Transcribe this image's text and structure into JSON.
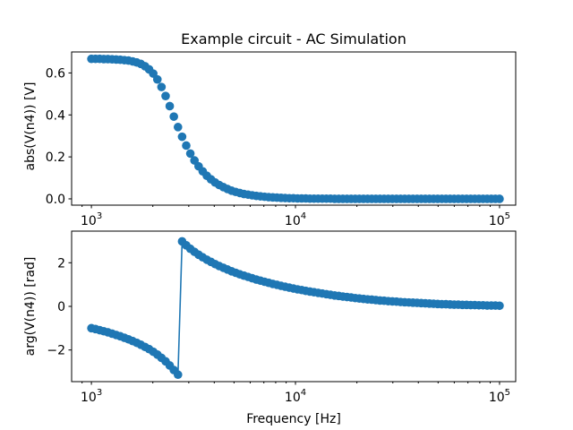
{
  "chart_data": [
    {
      "type": "scatter",
      "title": "Example circuit - AC Simulation",
      "xlabel": "",
      "ylabel": "abs(V(n4)) [V]",
      "xscale": "log",
      "xlim": [
        800,
        120000
      ],
      "ylim": [
        -0.03,
        0.7
      ],
      "xticks": [
        {
          "value": 1000,
          "base": "10",
          "exp": "3"
        },
        {
          "value": 10000,
          "base": "10",
          "exp": "4"
        },
        {
          "value": 100000,
          "base": "10",
          "exp": "5"
        }
      ],
      "yticks": [
        {
          "value": 0.0,
          "label": "0.0"
        },
        {
          "value": 0.2,
          "label": "0.2"
        },
        {
          "value": 0.4,
          "label": "0.4"
        },
        {
          "value": 0.6,
          "label": "0.6"
        }
      ],
      "color": "#1f77b4",
      "x": [
        1000,
        1047.6,
        1097.5,
        1149.8,
        1204.5,
        1261.9,
        1322,
        1385,
        1450.9,
        1520,
        1592.5,
        1668.1,
        1747.5,
        1830.7,
        1917.9,
        2009.2,
        2104.9,
        2205.1,
        2310.1,
        2420.1,
        2535.4,
        2656.1,
        2782.6,
        2915.1,
        3053.9,
        3199.3,
        3351.6,
        3511.2,
        3678.4,
        3853.5,
        4037,
        4229.2,
        4430.6,
        4641.6,
        4862.6,
        5094.1,
        5336.7,
        5590.8,
        5857,
        6135.9,
        6428.1,
        6734.2,
        7054.8,
        7390.7,
        7742.6,
        8111.3,
        8497.5,
        8902.2,
        9326,
        9770.1,
        10235.3,
        10722.7,
        11233.2,
        11768.1,
        12328.5,
        12915.5,
        13530.5,
        14174.7,
        14849.7,
        15556.8,
        16297.5,
        17073.5,
        17886.5,
        18738.2,
        19630.4,
        20565.1,
        21544.3,
        22570.2,
        23645,
        24770.8,
        25950.2,
        27185.9,
        28480.4,
        29836.5,
        31257.2,
        32745.5,
        34304.8,
        35938.1,
        37649.4,
        39442.1,
        41320,
        43287.6,
        45348.8,
        47508.1,
        49770.2,
        52140.1,
        54622.8,
        57223.7,
        59948.4,
        62802.9,
        65793.3,
        68926.1,
        72208.1,
        75646.3,
        79248.3,
        83021.8,
        86975,
        91116.3,
        95455.1,
        100000
      ],
      "y": [
        0.667,
        0.667,
        0.667,
        0.666,
        0.666,
        0.665,
        0.664,
        0.663,
        0.661,
        0.659,
        0.655,
        0.65,
        0.643,
        0.632,
        0.617,
        0.597,
        0.569,
        0.533,
        0.49,
        0.442,
        0.392,
        0.342,
        0.296,
        0.254,
        0.216,
        0.183,
        0.155,
        0.131,
        0.11,
        0.093,
        0.078,
        0.066,
        0.056,
        0.047,
        0.039,
        0.033,
        0.028,
        0.023,
        0.02,
        0.017,
        0.014,
        0.012,
        0.01,
        0.008,
        0.007,
        0.006,
        0.005,
        0.004,
        0.003,
        0.003,
        0.002,
        0.002,
        0.002,
        0.001,
        0.001,
        0.001,
        0.001,
        0.001,
        0.001,
        0,
        0,
        0,
        0,
        0,
        0,
        0,
        0,
        0,
        0,
        0,
        0,
        0,
        0,
        0,
        0,
        0,
        0,
        0,
        0,
        0,
        0,
        0,
        0,
        0,
        0,
        0,
        0,
        0,
        0,
        0,
        0,
        0,
        0,
        0,
        0,
        0,
        0,
        0,
        0,
        0
      ]
    },
    {
      "type": "line",
      "title": "",
      "xlabel": "Frequency [Hz]",
      "ylabel": "arg(V(n4)) [rad]",
      "xscale": "log",
      "xlim": [
        800,
        120000
      ],
      "ylim": [
        -3.45,
        3.45
      ],
      "xticks": [
        {
          "value": 1000,
          "base": "10",
          "exp": "3"
        },
        {
          "value": 10000,
          "base": "10",
          "exp": "4"
        },
        {
          "value": 100000,
          "base": "10",
          "exp": "5"
        }
      ],
      "yticks": [
        {
          "value": -2,
          "label": "−2"
        },
        {
          "value": 0,
          "label": "0"
        },
        {
          "value": 2,
          "label": "2"
        }
      ],
      "color": "#1f77b4",
      "markers": true,
      "x": [
        1000,
        1047.6,
        1097.5,
        1149.8,
        1204.5,
        1261.9,
        1322,
        1385,
        1450.9,
        1520,
        1592.5,
        1668.1,
        1747.5,
        1830.7,
        1917.9,
        2009.2,
        2104.9,
        2205.1,
        2310.1,
        2420.1,
        2535.4,
        2656.1,
        2782.6,
        2915.1,
        3053.9,
        3199.3,
        3351.6,
        3511.2,
        3678.4,
        3853.5,
        4037,
        4229.2,
        4430.6,
        4641.6,
        4862.6,
        5094.1,
        5336.7,
        5590.8,
        5857,
        6135.9,
        6428.1,
        6734.2,
        7054.8,
        7390.7,
        7742.6,
        8111.3,
        8497.5,
        8902.2,
        9326,
        9770.1,
        10235.3,
        10722.7,
        11233.2,
        11768.1,
        12328.5,
        12915.5,
        13530.5,
        14174.7,
        14849.7,
        15556.8,
        16297.5,
        17073.5,
        17886.5,
        18738.2,
        19630.4,
        20565.1,
        21544.3,
        22570.2,
        23645,
        24770.8,
        25950.2,
        27185.9,
        28480.4,
        29836.5,
        31257.2,
        32745.5,
        34304.8,
        35938.1,
        37649.4,
        39442.1,
        41320,
        43287.6,
        45348.8,
        47508.1,
        49770.2,
        52140.1,
        54622.8,
        57223.7,
        59948.4,
        62802.9,
        65793.3,
        68926.1,
        72208.1,
        75646.3,
        79248.3,
        83021.8,
        86975,
        91116.3,
        95455.1,
        100000
      ],
      "y": [
        -1.0,
        -1.04,
        -1.09,
        -1.14,
        -1.19,
        -1.25,
        -1.31,
        -1.37,
        -1.44,
        -1.51,
        -1.59,
        -1.67,
        -1.76,
        -1.86,
        -1.96,
        -2.08,
        -2.21,
        -2.36,
        -2.52,
        -2.71,
        -2.92,
        -3.13,
        2.98,
        2.8,
        2.64,
        2.5,
        2.37,
        2.25,
        2.14,
        2.04,
        1.94,
        1.85,
        1.77,
        1.69,
        1.61,
        1.54,
        1.47,
        1.41,
        1.35,
        1.29,
        1.23,
        1.18,
        1.13,
        1.08,
        1.03,
        0.99,
        0.94,
        0.9,
        0.86,
        0.82,
        0.78,
        0.75,
        0.71,
        0.68,
        0.65,
        0.62,
        0.59,
        0.56,
        0.53,
        0.5,
        0.48,
        0.45,
        0.43,
        0.41,
        0.38,
        0.36,
        0.34,
        0.32,
        0.31,
        0.29,
        0.27,
        0.26,
        0.24,
        0.23,
        0.22,
        0.2,
        0.19,
        0.18,
        0.17,
        0.16,
        0.15,
        0.14,
        0.13,
        0.12,
        0.11,
        0.1,
        0.1,
        0.09,
        0.08,
        0.08,
        0.07,
        0.07,
        0.06,
        0.06,
        0.05,
        0.05,
        0.04,
        0.04,
        0.04,
        0.03
      ]
    }
  ]
}
